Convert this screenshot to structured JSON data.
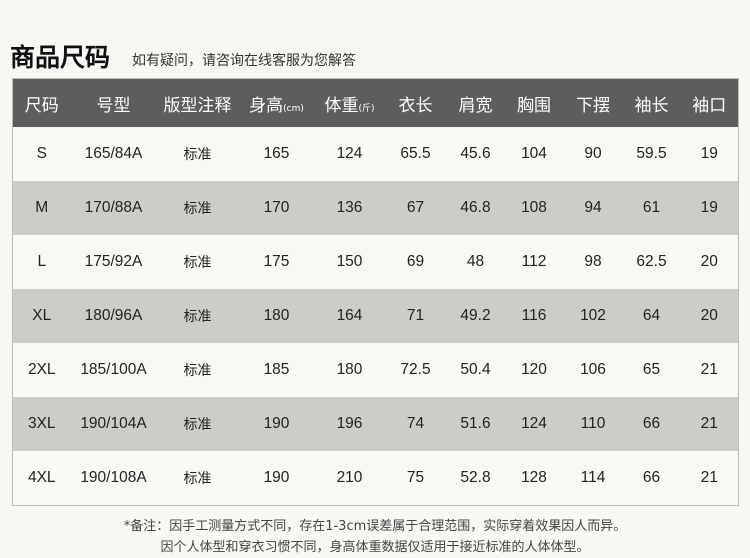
{
  "title": "商品尺码",
  "subtitle": "如有疑问，请咨询在线客服为您解答",
  "headers": [
    {
      "label": "尺码",
      "unit": ""
    },
    {
      "label": "号型",
      "unit": ""
    },
    {
      "label": "版型注释",
      "unit": ""
    },
    {
      "label": "身高",
      "unit": "(cm)"
    },
    {
      "label": "体重",
      "unit": "(斤)"
    },
    {
      "label": "衣长",
      "unit": ""
    },
    {
      "label": "肩宽",
      "unit": ""
    },
    {
      "label": "胸围",
      "unit": ""
    },
    {
      "label": "下摆",
      "unit": ""
    },
    {
      "label": "袖长",
      "unit": ""
    },
    {
      "label": "袖口",
      "unit": ""
    }
  ],
  "rows": [
    [
      "S",
      "165/84A",
      "标准",
      "165",
      "124",
      "65.5",
      "45.6",
      "104",
      "90",
      "59.5",
      "19"
    ],
    [
      "M",
      "170/88A",
      "标准",
      "170",
      "136",
      "67",
      "46.8",
      "108",
      "94",
      "61",
      "19"
    ],
    [
      "L",
      "175/92A",
      "标准",
      "175",
      "150",
      "69",
      "48",
      "112",
      "98",
      "62.5",
      "20"
    ],
    [
      "XL",
      "180/96A",
      "标准",
      "180",
      "164",
      "71",
      "49.2",
      "116",
      "102",
      "64",
      "20"
    ],
    [
      "2XL",
      "185/100A",
      "标准",
      "185",
      "180",
      "72.5",
      "50.4",
      "120",
      "106",
      "65",
      "21"
    ],
    [
      "3XL",
      "190/104A",
      "标准",
      "190",
      "196",
      "74",
      "51.6",
      "124",
      "110",
      "66",
      "21"
    ],
    [
      "4XL",
      "190/108A",
      "标准",
      "190",
      "210",
      "75",
      "52.8",
      "128",
      "114",
      "66",
      "21"
    ]
  ],
  "note": [
    "*备注：因手工测量方式不同，存在1-3cm误差属于合理范围，实际穿着效果因人而异。",
    "因个人体型和穿衣习惯不同，身高体重数据仅适用于接近标准的人体体型。"
  ]
}
